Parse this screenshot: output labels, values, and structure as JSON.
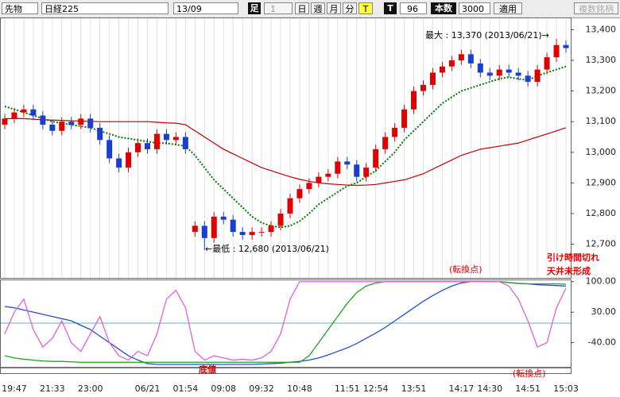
{
  "toolbar": {
    "contract": "先物",
    "index": "日経225",
    "month": "13/09",
    "bar_label": "足",
    "bar_value": "1",
    "day": "日",
    "week": "週",
    "month_btn": "月",
    "minute": "分",
    "tick": "T",
    "t_label": "T",
    "count": "96",
    "bars_label": "本数",
    "bars": "3000",
    "apply": "適用",
    "multi": "複数銘柄"
  },
  "chart_data": [
    {
      "type": "candlestick",
      "categories": [
        null,
        "19:47",
        null,
        null,
        null,
        "21:33",
        null,
        null,
        null,
        "23:00",
        null,
        null,
        null,
        null,
        null,
        "06/21",
        null,
        null,
        null,
        "01:54",
        null,
        null,
        null,
        "09:08",
        null,
        null,
        null,
        "09:32",
        null,
        null,
        null,
        "10:48",
        null,
        null,
        null,
        null,
        "11:51",
        null,
        null,
        "12:54",
        null,
        null,
        null,
        "13:51",
        null,
        null,
        null,
        null,
        "14:17",
        null,
        null,
        "14:30",
        null,
        null,
        null,
        "14:51",
        null,
        null,
        null,
        "15:03"
      ],
      "open": [
        13090,
        13110,
        13130,
        13140,
        13120,
        13090,
        13070,
        13100,
        13090,
        13110,
        13080,
        13040,
        12980,
        12950,
        13000,
        13030,
        13010,
        13060,
        13040,
        13050,
        12740,
        12760,
        12720,
        12790,
        12780,
        12740,
        12730,
        12740,
        12740,
        12760,
        12800,
        12850,
        12880,
        12900,
        12920,
        12930,
        12970,
        12960,
        12920,
        12950,
        13010,
        13050,
        13080,
        13140,
        13200,
        13220,
        13260,
        13280,
        13300,
        13320,
        13290,
        13260,
        13250,
        13270,
        13260,
        13250,
        13230,
        13270,
        13310,
        13350
      ],
      "high": [
        13125,
        13145,
        13155,
        13155,
        13135,
        13105,
        13115,
        13115,
        13125,
        13125,
        13095,
        13055,
        12995,
        13015,
        13045,
        13045,
        13075,
        13075,
        13065,
        13065,
        12775,
        12775,
        12805,
        12805,
        12795,
        12755,
        12755,
        12755,
        12775,
        12815,
        12865,
        12895,
        12915,
        12935,
        12945,
        12985,
        12985,
        12975,
        12965,
        13025,
        13065,
        13095,
        13155,
        13215,
        13235,
        13275,
        13295,
        13315,
        13335,
        13335,
        13305,
        13275,
        13285,
        13285,
        13275,
        13265,
        13285,
        13325,
        13370,
        13365
      ],
      "low": [
        13075,
        13095,
        13115,
        13105,
        13075,
        13055,
        13055,
        13075,
        13075,
        13065,
        13025,
        12965,
        12935,
        12935,
        12985,
        12995,
        12995,
        13025,
        13025,
        12995,
        12725,
        12680,
        12705,
        12765,
        12725,
        12715,
        12715,
        12725,
        12725,
        12745,
        12785,
        12835,
        12865,
        12885,
        12905,
        12915,
        12945,
        12905,
        12905,
        12935,
        12995,
        13035,
        13065,
        13125,
        13185,
        13205,
        13245,
        13265,
        13285,
        13275,
        13245,
        13235,
        13235,
        13245,
        13235,
        13215,
        13215,
        13255,
        13295,
        13325
      ],
      "close": [
        13110,
        13130,
        13140,
        13120,
        13090,
        13070,
        13100,
        13090,
        13110,
        13080,
        13040,
        12980,
        12950,
        13000,
        13030,
        13010,
        13060,
        13040,
        13050,
        13010,
        12760,
        12720,
        12790,
        12780,
        12740,
        12730,
        12740,
        12740,
        12760,
        12800,
        12850,
        12880,
        12900,
        12920,
        12930,
        12970,
        12960,
        12920,
        12950,
        13010,
        13050,
        13080,
        13140,
        13200,
        13220,
        13260,
        13280,
        13300,
        13320,
        13290,
        13260,
        13250,
        13270,
        13260,
        13250,
        13230,
        13270,
        13310,
        13350,
        13340
      ],
      "up_color": "#e00000",
      "down_color": "#1a3fd0",
      "series": [
        {
          "color": "#007a00",
          "dash": true,
          "values": [
            13150,
            13140,
            13130,
            13120,
            13110,
            13100,
            13095,
            13090,
            13085,
            13080,
            13070,
            13060,
            13050,
            13045,
            13040,
            13035,
            13030,
            13030,
            13025,
            13020,
            12990,
            12950,
            12910,
            12880,
            12850,
            12820,
            12790,
            12770,
            12760,
            12755,
            12760,
            12775,
            12800,
            12830,
            12850,
            12870,
            12890,
            12900,
            12920,
            12940,
            12970,
            13000,
            13040,
            13070,
            13100,
            13130,
            13160,
            13180,
            13200,
            13210,
            13220,
            13230,
            13240,
            13245,
            13240,
            13235,
            13250,
            13260,
            13270,
            13280
          ]
        },
        {
          "color": "#c00000",
          "dash": false,
          "values": [
            13110,
            13110,
            13110,
            13108,
            13106,
            13105,
            13104,
            13103,
            13102,
            13101,
            13100,
            13100,
            13100,
            13100,
            13100,
            13100,
            13098,
            13096,
            13095,
            13090,
            13070,
            13050,
            13030,
            13010,
            12995,
            12980,
            12965,
            12950,
            12940,
            12930,
            12920,
            12912,
            12905,
            12900,
            12897,
            12895,
            12893,
            12892,
            12893,
            12895,
            12900,
            12905,
            12910,
            12920,
            12930,
            12945,
            12960,
            12975,
            12990,
            13000,
            13010,
            13015,
            13020,
            13025,
            13030,
            13040,
            13050,
            13060,
            13070,
            13080
          ]
        }
      ],
      "ylim": [
        12590,
        13440
      ],
      "yticks": [
        {
          "value": 13400,
          "label": "13,400"
        },
        {
          "value": 13300,
          "label": "13,300"
        },
        {
          "value": 13200,
          "label": "13,200"
        },
        {
          "value": 13100,
          "label": "13,100"
        },
        {
          "value": 13000,
          "label": "13,000"
        },
        {
          "value": 12900,
          "label": "12,900"
        },
        {
          "value": 12800,
          "label": "12,800"
        },
        {
          "value": 12700,
          "label": "12,700"
        }
      ],
      "annotations": [
        "最大 : 13,370 (2013/06/21)→",
        "←最低 : 12,680 (2013/06/21)",
        "(転換点)",
        "引け時間切れ",
        "天井未形成"
      ]
    },
    {
      "type": "line",
      "series": [
        {
          "color": "#1f4fcf",
          "values": [
            43,
            40,
            35,
            30,
            25,
            20,
            15,
            10,
            0,
            -10,
            -25,
            -40,
            -55,
            -70,
            -80,
            -88,
            -90,
            -90,
            -90,
            -90,
            -90,
            -90,
            -90,
            -90,
            -90,
            -90,
            -90,
            -89,
            -88,
            -87,
            -85,
            -83,
            -80,
            -75,
            -68,
            -60,
            -52,
            -42,
            -30,
            -18,
            -5,
            10,
            25,
            40,
            55,
            68,
            80,
            90,
            97,
            100,
            100,
            100,
            100,
            98,
            96,
            95,
            93,
            92,
            91,
            90
          ]
        },
        {
          "color": "#22a022",
          "values": [
            -70,
            -75,
            -78,
            -80,
            -82,
            -83,
            -83,
            -84,
            -85,
            -85,
            -85,
            -85,
            -85,
            -85,
            -85,
            -85,
            -85,
            -85,
            -85,
            -85,
            -85,
            -85,
            -85,
            -85,
            -85,
            -85,
            -85,
            -85,
            -85,
            -85,
            -85,
            -85,
            -70,
            -40,
            -10,
            20,
            50,
            75,
            90,
            97,
            100,
            100,
            100,
            100,
            100,
            100,
            100,
            100,
            100,
            100,
            100,
            100,
            100,
            98,
            96,
            95,
            95,
            95,
            95,
            94
          ]
        },
        {
          "color": "#e060e0",
          "values": [
            -20,
            30,
            60,
            -10,
            -50,
            -30,
            10,
            -40,
            -60,
            -20,
            20,
            -40,
            -70,
            -80,
            -60,
            -70,
            -20,
            60,
            80,
            40,
            -60,
            -80,
            -70,
            -75,
            -80,
            -78,
            -80,
            -75,
            -60,
            -20,
            60,
            100,
            100,
            100,
            100,
            100,
            100,
            100,
            100,
            100,
            100,
            100,
            100,
            100,
            100,
            100,
            100,
            100,
            100,
            100,
            100,
            100,
            100,
            90,
            60,
            10,
            -50,
            -40,
            40,
            85
          ]
        }
      ],
      "ylim": [
        -110,
        105
      ],
      "yticks": [
        {
          "value": 100,
          "label": "100.00"
        },
        {
          "value": 30,
          "label": "30.00"
        },
        {
          "value": -40,
          "label": "-40.00"
        }
      ],
      "annotations": [
        "底値",
        "(転換点)"
      ]
    }
  ]
}
